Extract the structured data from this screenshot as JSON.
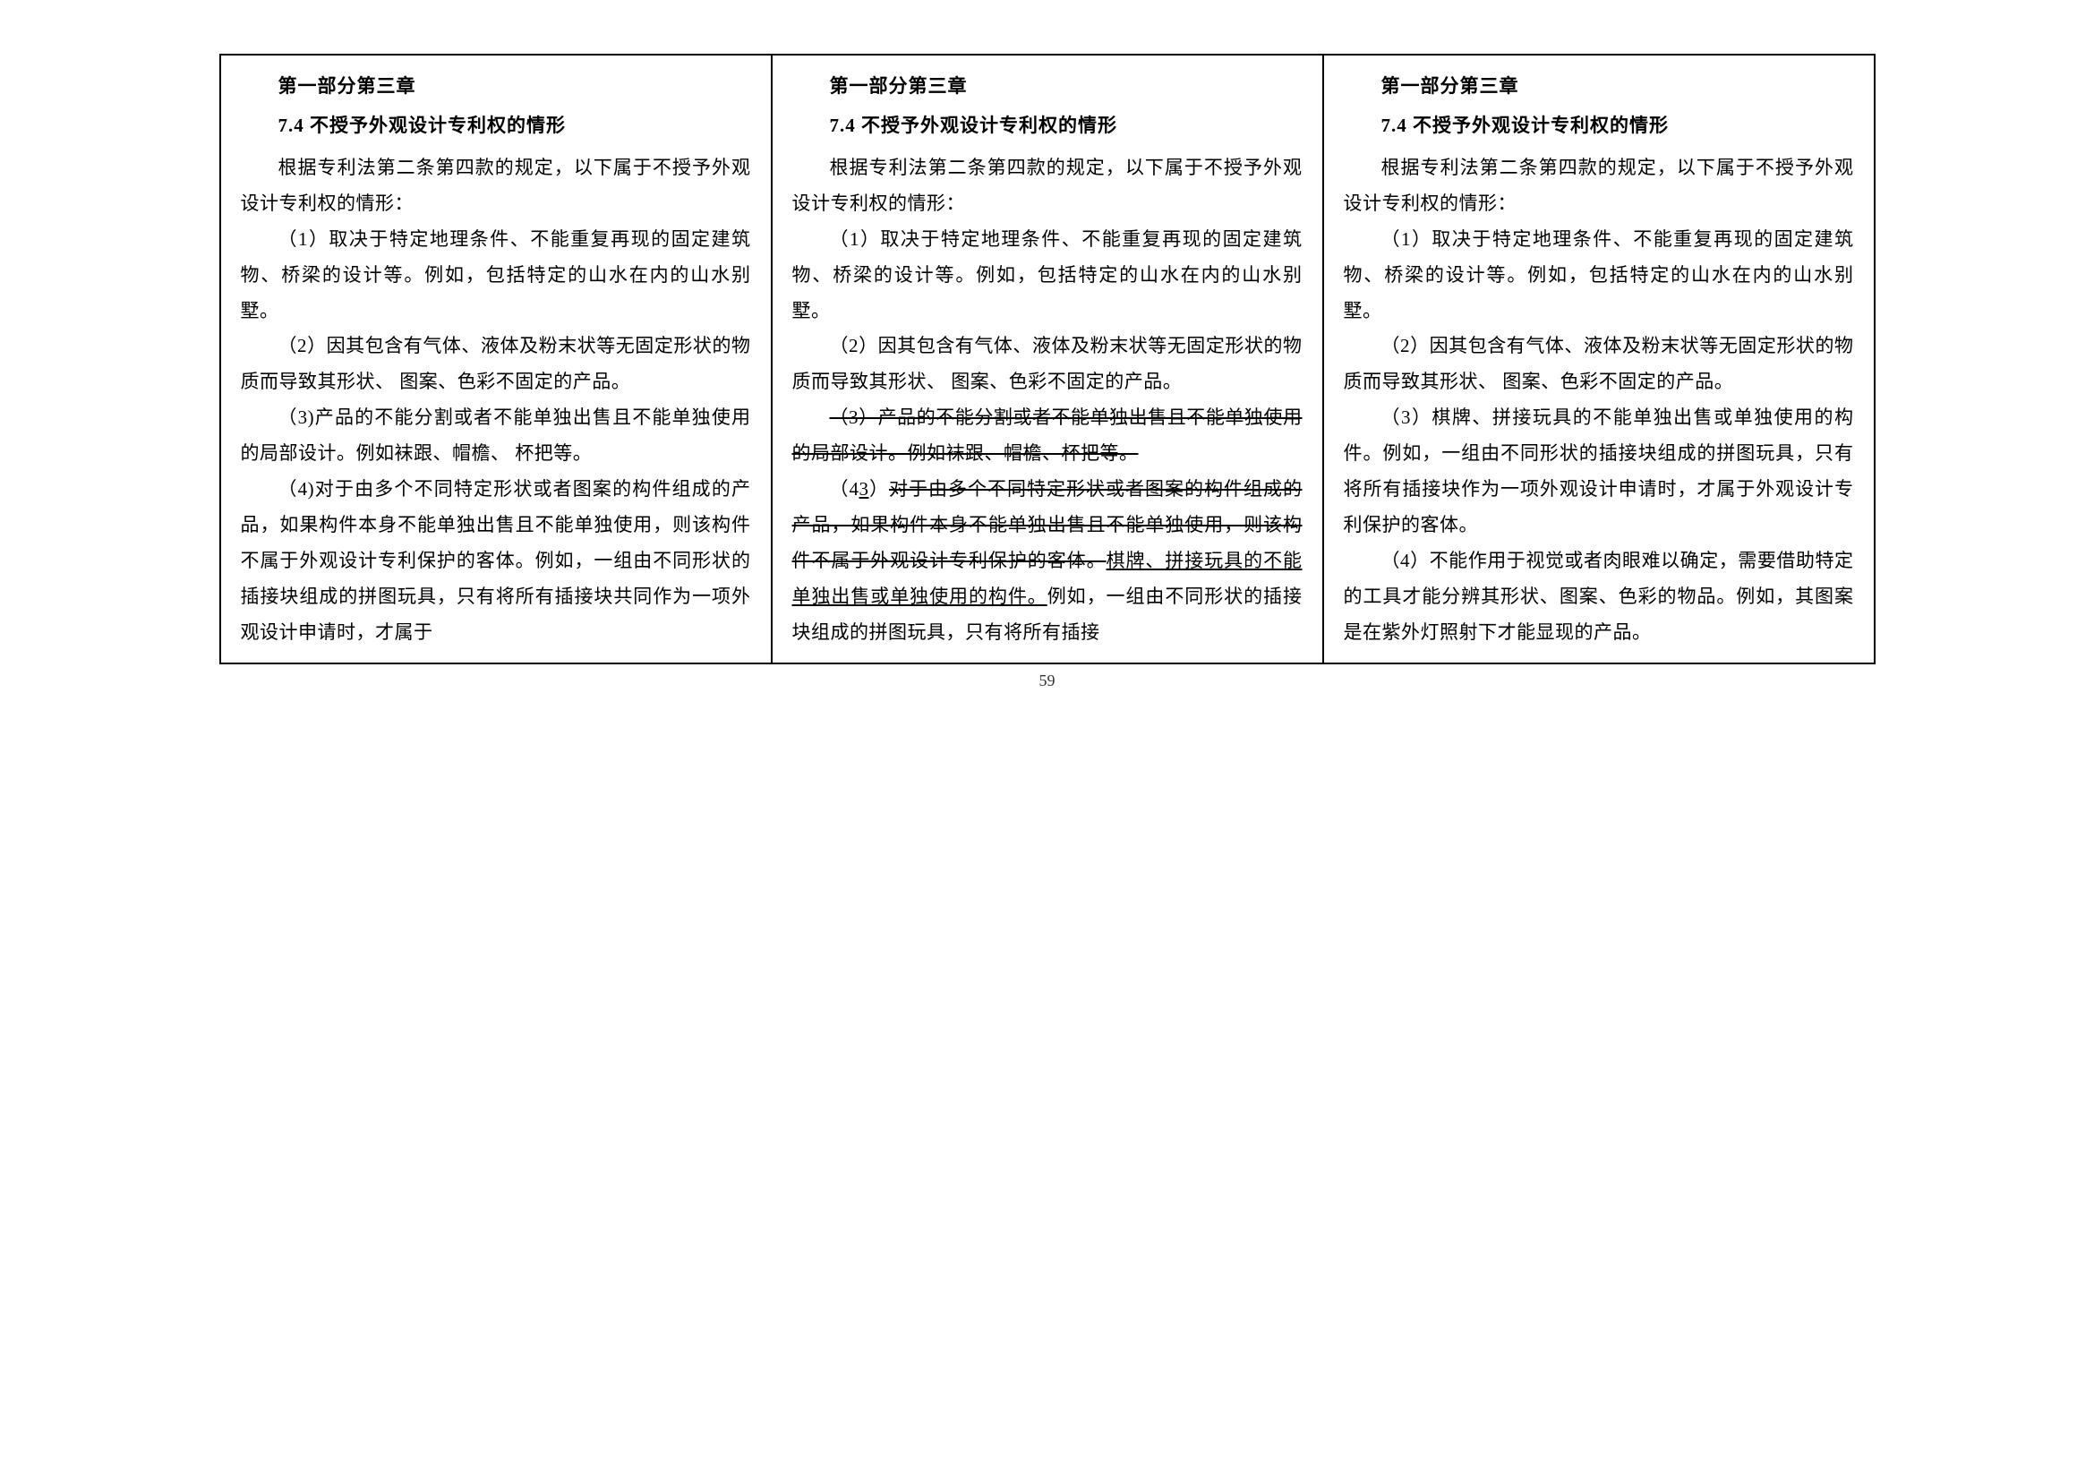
{
  "pageNumber": "59",
  "chapterTitle": "第一部分第三章",
  "sectionTitle": "7.4 不授予外观设计专利权的情形",
  "col1": {
    "intro": "根据专利法第二条第四款的规定，以下属于不授予外观设计专利权的情形：",
    "p1": "（1）取决于特定地理条件、不能重复再现的固定建筑物、桥梁的设计等。例如，包括特定的山水在内的山水别墅。",
    "p2": "（2）因其包含有气体、液体及粉末状等无固定形状的物质而导致其形状、 图案、色彩不固定的产品。",
    "p3": "（3)产品的不能分割或者不能单独出售且不能单独使用的局部设计。例如袜跟、帽檐、 杯把等。",
    "p4": "（4)对于由多个不同特定形状或者图案的构件组成的产品，如果构件本身不能单独出售且不能单独使用，则该构件不属于外观设计专利保护的客体。例如，一组由不同形状的插接块组成的拼图玩具，只有将所有插接块共同作为一项外观设计申请时，才属于"
  },
  "col2": {
    "intro": "根据专利法第二条第四款的规定，以下属于不授予外观设计专利权的情形：",
    "p1": "（1）取决于特定地理条件、不能重复再现的固定建筑物、桥梁的设计等。例如，包括特定的山水在内的山水别墅。",
    "p2": "（2）因其包含有气体、液体及粉末状等无固定形状的物质而导致其形状、 图案、色彩不固定的产品。",
    "p3_strike": "（3）产品的不能分割或者不能单独出售且不能单独使用的局部设计。例如袜跟、帽檐、杯把等。",
    "p4_open": "（4",
    "p4_under3": "3",
    "p4_close": "）",
    "p4_strike1": "对于由多个不同特定形状或者图案的构件组成的产品，如果构件本身不能单独出售且不能单独使用，则该构件不属于外观设计专利保护的客体。",
    "p4_under1": "棋牌、拼接玩具的不能单独出售或单独使用的构件。",
    "p4_tail": "例如，一组由不同形状的插接块组成的拼图玩具，只有将所有插接"
  },
  "col3": {
    "intro": "根据专利法第二条第四款的规定，以下属于不授予外观设计专利权的情形：",
    "p1": "（1）取决于特定地理条件、不能重复再现的固定建筑物、桥梁的设计等。例如，包括特定的山水在内的山水别墅。",
    "p2": "（2）因其包含有气体、液体及粉末状等无固定形状的物质而导致其形状、 图案、色彩不固定的产品。",
    "p3": "（3）棋牌、拼接玩具的不能单独出售或单独使用的构件。例如，一组由不同形状的插接块组成的拼图玩具，只有将所有插接块作为一项外观设计申请时，才属于外观设计专利保护的客体。",
    "p4": "（4）不能作用于视觉或者肉眼难以确定，需要借助特定的工具才能分辨其形状、图案、色彩的物品。例如，其图案是在紫外灯照射下才能显现的产品。"
  }
}
